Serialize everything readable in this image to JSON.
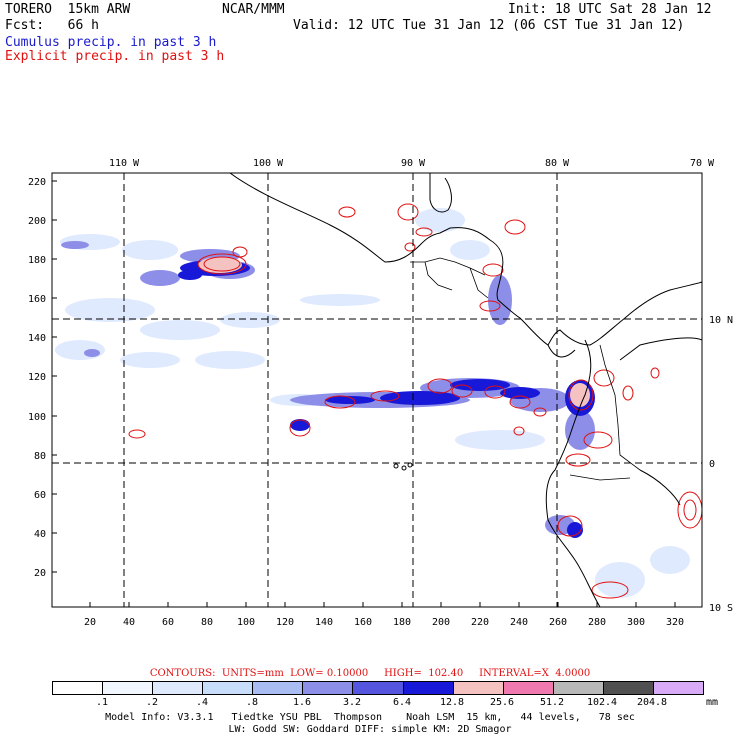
{
  "header": {
    "model": "TORERO  15km ARW",
    "org": "NCAR/MMM",
    "init": "Init: 18 UTC Sat 28 Jan 12",
    "fcst": "Fcst:   66 h",
    "valid": "Valid: 12 UTC Tue 31 Jan 12 (06 CST Tue 31 Jan 12)",
    "legend_cumulus": "Cumulus precip. in past 3 h",
    "legend_explicit": "Explicit precip. in past 3 h"
  },
  "colors": {
    "cumulus": "#1a1acc",
    "explicit": "#e01010"
  },
  "axes": {
    "top_lon_labels": [
      "110 W",
      "100 W",
      "90 W",
      "80 W",
      "70 W"
    ],
    "right_lat_labels": [
      "10 N",
      "0",
      "10 S"
    ],
    "left_ticks": [
      "220",
      "200",
      "180",
      "160",
      "140",
      "120",
      "100",
      "80",
      "60",
      "40",
      "20"
    ],
    "bottom_ticks": [
      "20",
      "40",
      "60",
      "80",
      "100",
      "120",
      "140",
      "160",
      "180",
      "200",
      "220",
      "240",
      "260",
      "280",
      "300",
      "320"
    ]
  },
  "contours_text": "CONTOURS:  UNITS=mm  LOW= 0.10000     HIGH=  102.40     INTERVAL=X  4.0000",
  "color_scale": {
    "labels": [
      ".1",
      ".2",
      ".4",
      ".8",
      "1.6",
      "3.2",
      "6.4",
      "12.8",
      "25.6",
      "51.2",
      "102.4",
      "204.8"
    ],
    "unit": "mm",
    "swatches": [
      "#ffffff",
      "#f2f6ff",
      "#dfeaff",
      "#c8ddfa",
      "#aabdf3",
      "#8d8ee8",
      "#5555e0",
      "#1818d8",
      "#f5c2c2",
      "#f07ab0",
      "#b8b8b8",
      "#505050",
      "#d8aaf8"
    ]
  },
  "footer": {
    "line1": "Model Info: V3.3.1   Tiedtke YSU PBL  Thompson    Noah LSM  15 km,   44 levels,   78 sec",
    "line2": "LW: Godd SW: Goddard DIFF: simple KM: 2D Smagor"
  }
}
